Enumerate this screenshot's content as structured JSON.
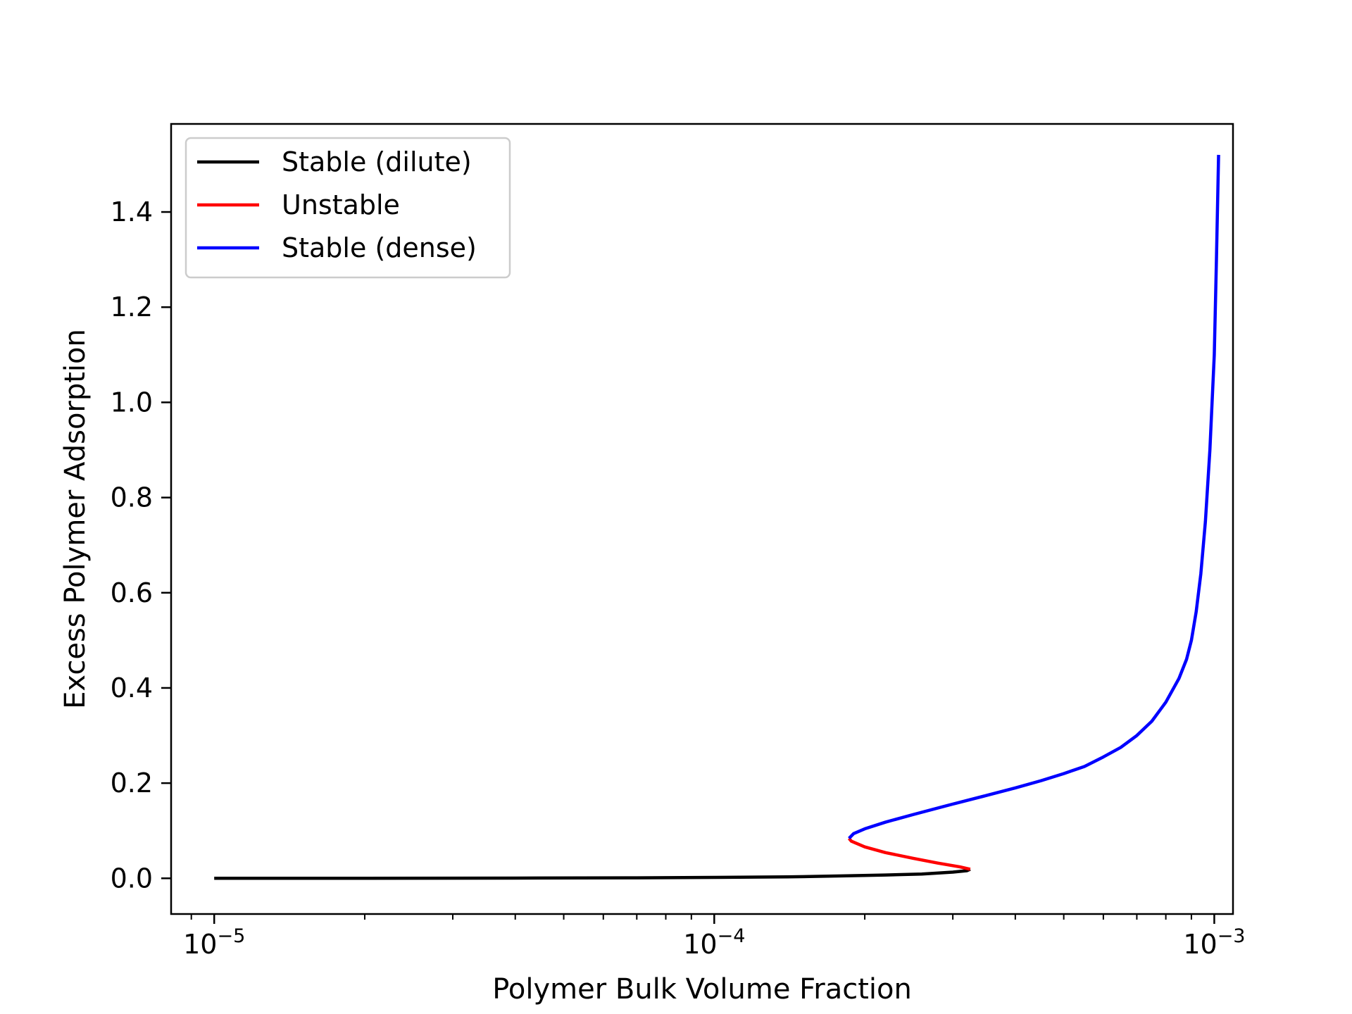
{
  "chart_data": {
    "type": "line",
    "title": "",
    "xlabel": "Polymer Bulk Volume Fraction",
    "ylabel": "Excess Polymer Adsorption",
    "xscale": "log",
    "xlim": [
      8.2e-06,
      0.00109
    ],
    "ylim": [
      -0.075,
      1.585
    ],
    "grid": false,
    "legend_position": "top-left",
    "x_ticks": [
      {
        "value": 1e-05,
        "base": "10",
        "exp": "−5"
      },
      {
        "value": 0.0001,
        "base": "10",
        "exp": "−4"
      },
      {
        "value": 0.001,
        "base": "10",
        "exp": "−3"
      }
    ],
    "y_ticks": [
      {
        "value": 0.0,
        "label": "0.0"
      },
      {
        "value": 0.2,
        "label": "0.2"
      },
      {
        "value": 0.4,
        "label": "0.4"
      },
      {
        "value": 0.6,
        "label": "0.6"
      },
      {
        "value": 0.8,
        "label": "0.8"
      },
      {
        "value": 1.0,
        "label": "1.0"
      },
      {
        "value": 1.2,
        "label": "1.2"
      },
      {
        "value": 1.4,
        "label": "1.4"
      }
    ],
    "series": [
      {
        "name": "Stable (dilute)",
        "color": "#000000",
        "points": [
          [
            1e-05,
            0.0
          ],
          [
            2e-05,
            0.0
          ],
          [
            4e-05,
            0.0005
          ],
          [
            7e-05,
            0.001
          ],
          [
            0.0001,
            0.002
          ],
          [
            0.00014,
            0.003
          ],
          [
            0.00018,
            0.005
          ],
          [
            0.00022,
            0.007
          ],
          [
            0.00026,
            0.009
          ],
          [
            0.0003,
            0.013
          ],
          [
            0.00032,
            0.016
          ],
          [
            0.000325,
            0.019
          ]
        ]
      },
      {
        "name": "Unstable",
        "color": "#ff0000",
        "points": [
          [
            0.000325,
            0.019
          ],
          [
            0.00031,
            0.024
          ],
          [
            0.00028,
            0.032
          ],
          [
            0.00025,
            0.042
          ],
          [
            0.00022,
            0.054
          ],
          [
            0.0002,
            0.066
          ],
          [
            0.000188,
            0.078
          ],
          [
            0.000186,
            0.084
          ]
        ]
      },
      {
        "name": "Stable (dense)",
        "color": "#0000ff",
        "points": [
          [
            0.000186,
            0.084
          ],
          [
            0.00019,
            0.094
          ],
          [
            0.0002,
            0.104
          ],
          [
            0.00022,
            0.118
          ],
          [
            0.00025,
            0.134
          ],
          [
            0.0003,
            0.156
          ],
          [
            0.00035,
            0.174
          ],
          [
            0.0004,
            0.19
          ],
          [
            0.00045,
            0.205
          ],
          [
            0.0005,
            0.22
          ],
          [
            0.00055,
            0.235
          ],
          [
            0.0006,
            0.255
          ],
          [
            0.00065,
            0.275
          ],
          [
            0.0007,
            0.3
          ],
          [
            0.00075,
            0.33
          ],
          [
            0.0008,
            0.37
          ],
          [
            0.00085,
            0.42
          ],
          [
            0.00088,
            0.46
          ],
          [
            0.0009,
            0.5
          ],
          [
            0.00092,
            0.56
          ],
          [
            0.00094,
            0.64
          ],
          [
            0.00096,
            0.75
          ],
          [
            0.00098,
            0.9
          ],
          [
            0.001,
            1.1
          ],
          [
            0.00101,
            1.3
          ],
          [
            0.00102,
            1.52
          ]
        ]
      }
    ]
  }
}
